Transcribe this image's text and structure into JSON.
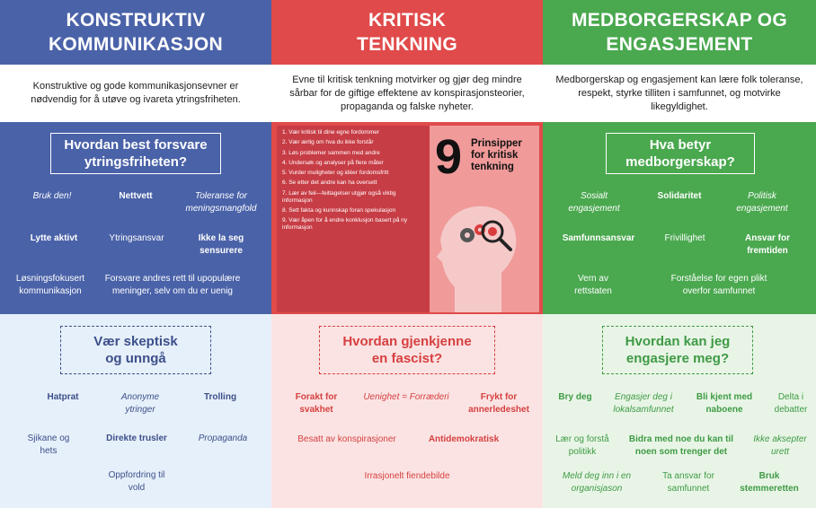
{
  "col1": {
    "header": [
      "KONSTRUKTIV",
      "KOMMUNIKASJON"
    ],
    "intro": "Konstruktive og gode kommunikasjonsevner er nødvendig for å utøve og ivareta ytringsfriheten.",
    "mid_title": "Hvordan best forsvare ytringsfriheten?",
    "mid_items": [
      "Bruk den!",
      "Nettvett",
      "Toleranse for meningsmangfold",
      "Lytte aktivt",
      "Ytringsansvar",
      "Ikke la seg sensurere",
      "Løsningsfokusert kommunikasjon",
      "Forsvare andres rett til upopulære meninger, selv om du er uenig"
    ],
    "bot_title": "Vær skeptisk og unngå",
    "bot_items": [
      "Hatprat",
      "Anonyme ytringer",
      "Trolling",
      "Sjikane og hets",
      "Direkte trusler",
      "Propaganda",
      "Oppfordring til vold"
    ]
  },
  "col2": {
    "header": [
      "KRITISK",
      "TENKNING"
    ],
    "intro": "Evne til kritisk tenkning motvirker og gjør deg mindre sårbar for de giftige effektene av konspirasjonsteorier, propaganda og falske nyheter.",
    "nine": "9",
    "principles_title": "Prinsipper for kritisk tenkning",
    "principles": [
      "1. Vær kritisk til dine egne fordommer",
      "2. Vær ærlig om hva du ikke forstår",
      "3. Løs problemer sammen med andre",
      "4. Undersøk og analyser på flere måter",
      "5. Vurder muligheter og idéer fordomsfritt",
      "6. Se etter det andre kan ha oversett",
      "7. Lær av feil—feiltagelser utgjør også viktig informasjon",
      "8. Sett fakta og kunnskap foran spekulasjon",
      "9. Vær åpen for å endre konklusjon basert på ny informasjon"
    ],
    "bot_title": "Hvordan gjenkjenne en fascist?",
    "bot_items": [
      "Forakt for svakhet",
      "Uenighet = Forræderi",
      "Frykt for annerledeshet",
      "Besatt av konspirasjoner",
      "Antidemokratisk",
      "Irrasjonelt fiendebilde"
    ]
  },
  "col3": {
    "header": [
      "MEDBORGERSKAP OG",
      "ENGASJEMENT"
    ],
    "intro": "Medborgerskap og engasjement kan lære folk toleranse, respekt, styrke tilliten i samfunnet, og motvirke likegyldighet.",
    "mid_title": "Hva betyr medborgerskap?",
    "mid_items": [
      "Sosialt engasjement",
      "Solidaritet",
      "Politisk engasjement",
      "Samfunnsansvar",
      "Frivillighet",
      "Ansvar for fremtiden",
      "Vern av rettstaten",
      "Forståelse for egen plikt overfor samfunnet"
    ],
    "bot_title": "Hvordan kan jeg engasjere meg?",
    "bot_items": [
      "Bry deg",
      "Engasjer deg i lokalsamfunnet",
      "Bli kjent med naboene",
      "Delta i debatter",
      "Lær og forstå politikk",
      "Bidra med noe du kan til noen som trenger det",
      "Ikke aksepter urett",
      "Meld deg inn i en organisjason",
      "Ta ansvar for samfunnet",
      "Bruk stemmeretten"
    ]
  },
  "colors": {
    "blue": "#4a62a8",
    "red": "#e04a4a",
    "green": "#4aa84f",
    "light_blue": "#e6f0fa",
    "light_red": "#fbe3e3",
    "light_green": "#e8f5e6"
  },
  "icons": [
    "head-silhouette-icon",
    "gears-icon",
    "magnifier-icon"
  ]
}
